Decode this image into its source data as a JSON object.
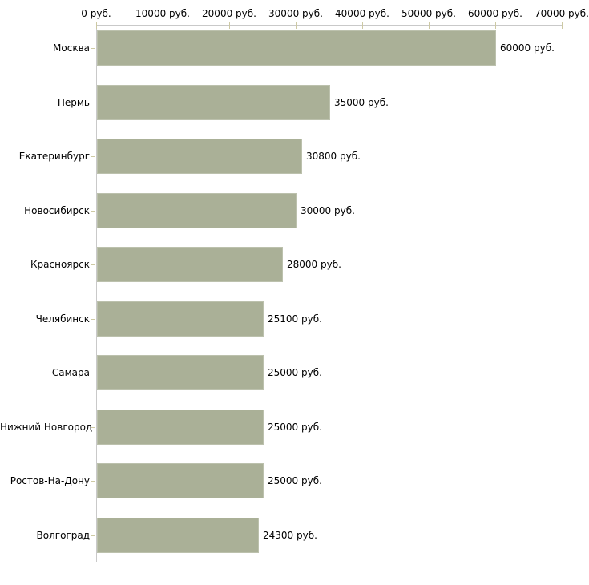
{
  "chart_data": {
    "type": "bar",
    "orientation": "horizontal",
    "categories": [
      "Москва",
      "Пермь",
      "Екатеринбург",
      "Новосибирск",
      "Красноярск",
      "Челябинск",
      "Самара",
      "Нижний Новгород",
      "Ростов-На-Дону",
      "Волгоград"
    ],
    "values": [
      60000,
      35000,
      30800,
      30000,
      28000,
      25100,
      25000,
      25000,
      25000,
      24300
    ],
    "value_labels": [
      "60000 руб.",
      "35000 руб.",
      "30800 руб.",
      "30000 руб.",
      "28000 руб.",
      "25100 руб.",
      "25000 руб.",
      "25000 руб.",
      "25000 руб.",
      "24300 руб."
    ],
    "x_axis": {
      "min": 0,
      "max": 70000,
      "tick_step": 10000,
      "tick_values": [
        0,
        10000,
        20000,
        30000,
        40000,
        50000,
        60000,
        70000
      ],
      "tick_labels": [
        "0 руб.",
        "10000 руб.",
        "20000 руб.",
        "30000 руб.",
        "40000 руб.",
        "50000 руб.",
        "60000 руб.",
        "70000 руб."
      ],
      "position": "top"
    },
    "grid": false,
    "legend": false,
    "colors": {
      "bar": "#aab097",
      "axis_line": "#c9c9c9",
      "tick": "#cdc9a3",
      "text": "#000000",
      "background": "#ffffff"
    }
  }
}
